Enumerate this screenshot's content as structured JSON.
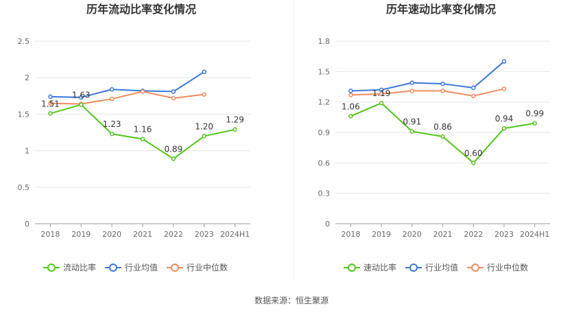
{
  "colors": {
    "company": "#52c41a",
    "industry_avg": "#3b77db",
    "industry_median": "#f08a5d",
    "grid": "#e6e6e6",
    "axis": "#999999",
    "divider": "#eeeeee"
  },
  "source_text": "数据来源：恒生聚源",
  "chart_data": [
    {
      "type": "line",
      "title": "历年流动比率变化情况",
      "categories": [
        "2018",
        "2019",
        "2020",
        "2021",
        "2022",
        "2023",
        "2024H1"
      ],
      "ylim": [
        0,
        2.5
      ],
      "yticks": [
        "0",
        "0.5",
        "1",
        "1.5",
        "2",
        "2.5"
      ],
      "ytick_values": [
        0,
        0.5,
        1,
        1.5,
        2,
        2.5
      ],
      "grid": true,
      "legend_position": "bottom",
      "series": [
        {
          "name": "流动比率",
          "key": "company",
          "values": [
            1.51,
            1.63,
            1.23,
            1.16,
            0.89,
            1.2,
            1.29
          ],
          "labels": [
            "1.51",
            "1.63",
            "1.23",
            "1.16",
            "0.89",
            "1.20",
            "1.29"
          ]
        },
        {
          "name": "行业均值",
          "key": "industry_avg",
          "values": [
            1.74,
            1.73,
            1.84,
            1.82,
            1.81,
            2.08,
            null
          ]
        },
        {
          "name": "行业中位数",
          "key": "industry_median",
          "values": [
            1.65,
            1.64,
            1.71,
            1.81,
            1.72,
            1.77,
            null
          ]
        }
      ]
    },
    {
      "type": "line",
      "title": "历年速动比率变化情况",
      "categories": [
        "2018",
        "2019",
        "2020",
        "2021",
        "2022",
        "2023",
        "2024H1"
      ],
      "ylim": [
        0,
        1.8
      ],
      "yticks": [
        "0",
        "0.3",
        "0.6",
        "0.9",
        "1.2",
        "1.5",
        "1.8"
      ],
      "ytick_values": [
        0,
        0.3,
        0.6,
        0.9,
        1.2,
        1.5,
        1.8
      ],
      "grid": true,
      "legend_position": "bottom",
      "series": [
        {
          "name": "速动比率",
          "key": "company",
          "values": [
            1.06,
            1.19,
            0.91,
            0.86,
            0.6,
            0.94,
            0.99
          ],
          "labels": [
            "1.06",
            "1.19",
            "0.91",
            "0.86",
            "0.60",
            "0.94",
            "0.99"
          ]
        },
        {
          "name": "行业均值",
          "key": "industry_avg",
          "values": [
            1.31,
            1.32,
            1.39,
            1.38,
            1.34,
            1.6,
            null
          ]
        },
        {
          "name": "行业中位数",
          "key": "industry_median",
          "values": [
            1.27,
            1.28,
            1.31,
            1.31,
            1.26,
            1.33,
            null
          ]
        }
      ]
    }
  ]
}
